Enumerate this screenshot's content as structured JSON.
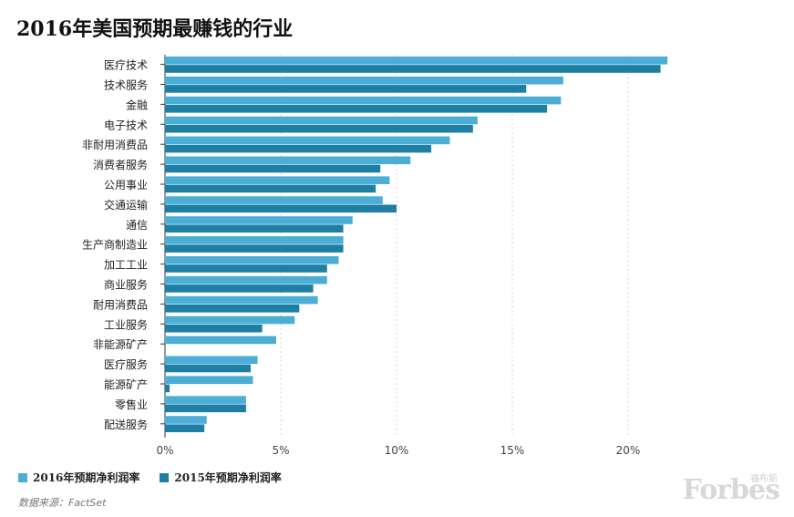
{
  "title": "2016年美国预期最赚钱的行业",
  "chart_data": {
    "type": "bar",
    "orientation": "horizontal",
    "categories": [
      "医疗技术",
      "技术服务",
      "金融",
      "电子技术",
      "非耐用消费品",
      "消费者服务",
      "公用事业",
      "交通运输",
      "通信",
      "生产商制造业",
      "加工工业",
      "商业服务",
      "耐用消费品",
      "工业服务",
      "非能源矿产",
      "医疗服务",
      "能源矿产",
      "零售业",
      "配送服务"
    ],
    "series": [
      {
        "name": "2016年预期净利润率",
        "color": "#4aaed6",
        "values": [
          21.7,
          17.2,
          17.1,
          13.5,
          12.3,
          10.6,
          9.7,
          9.4,
          8.1,
          7.7,
          7.5,
          7.0,
          6.6,
          5.6,
          4.8,
          4.0,
          3.8,
          3.5,
          1.8
        ]
      },
      {
        "name": "2015年预期净利润率",
        "color": "#1f7ea4",
        "values": [
          21.4,
          15.6,
          16.5,
          13.3,
          11.5,
          9.3,
          9.1,
          10.0,
          7.7,
          7.7,
          7.0,
          6.4,
          5.8,
          4.2,
          0,
          3.7,
          0.2,
          3.5,
          1.7
        ]
      }
    ],
    "x_ticks": [
      "0%",
      "5%",
      "10%",
      "15%",
      "20%"
    ],
    "xlim": [
      0,
      22
    ],
    "grid": true,
    "legend": "bottom-left"
  },
  "source": "数据来源：FactSet",
  "watermark": "Forbes",
  "watermark_sub": "福布斯"
}
